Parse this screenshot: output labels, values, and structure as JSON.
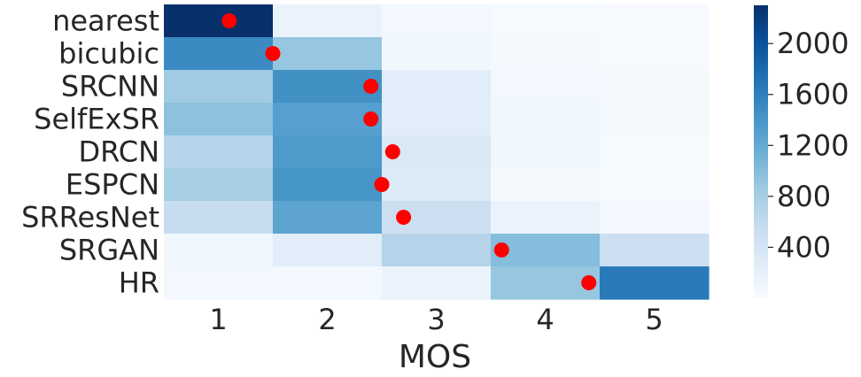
{
  "chart_data": {
    "type": "heatmap",
    "title": "",
    "xlabel": "MOS",
    "ylabel": "",
    "x_categories": [
      "1",
      "2",
      "3",
      "4",
      "5"
    ],
    "y_categories": [
      "nearest",
      "bicubic",
      "SRCNN",
      "SelfExSR",
      "DRCN",
      "ESPCN",
      "SRResNet",
      "SRGAN",
      "HR"
    ],
    "values": [
      [
        2300,
        150,
        50,
        20,
        10
      ],
      [
        1500,
        900,
        80,
        30,
        10
      ],
      [
        850,
        1450,
        250,
        60,
        30
      ],
      [
        950,
        1300,
        250,
        80,
        30
      ],
      [
        700,
        1350,
        350,
        80,
        20
      ],
      [
        800,
        1400,
        300,
        40,
        10
      ],
      [
        550,
        1250,
        500,
        150,
        50
      ],
      [
        80,
        250,
        700,
        1000,
        500
      ],
      [
        50,
        60,
        150,
        900,
        1650
      ]
    ],
    "mean_opinion_score": [
      1.6,
      2.0,
      2.9,
      2.9,
      3.1,
      3.0,
      3.2,
      4.1,
      4.9
    ],
    "marker_color": "#ff0000",
    "colormap": "Blues",
    "colorbar": {
      "ticks": [
        400,
        800,
        1200,
        1600,
        2000
      ],
      "range": [
        0,
        2300
      ]
    }
  }
}
